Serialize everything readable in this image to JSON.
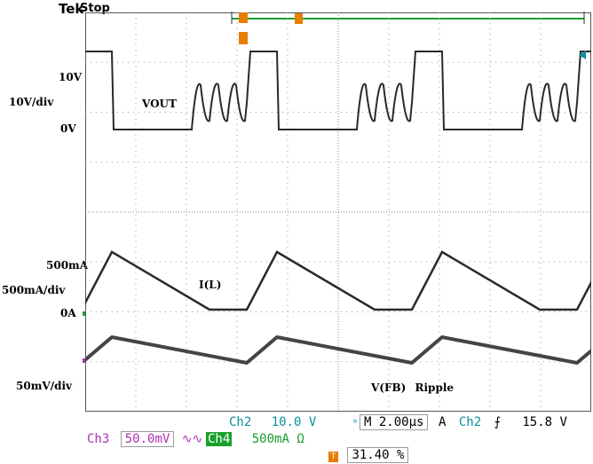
{
  "header": {
    "brand": "Tek",
    "status": "Stop"
  },
  "trigger_marker": {
    "icon": "trigger-position-arrow",
    "color": "#e67e00",
    "label": "T"
  },
  "labels": {
    "vout_high": "10V",
    "vout_scale": "10V/div",
    "vout_zero": "0V",
    "vout_name": "VOUT",
    "il_high": "500mA",
    "il_scale": "500mA/div",
    "il_zero": "0A",
    "il_name": "I(L)",
    "vfb_scale": "50mV/div",
    "vfb_name": "V(FB)",
    "vfb_suffix": "Ripple"
  },
  "readouts": {
    "ch2_name": "Ch2",
    "ch2_scale": "10.0 V",
    "timebase": "M 2.00µs",
    "trig_mode": "A",
    "trig_ch": "Ch2",
    "trig_slope_icon": "rising-edge-icon",
    "trig_level": "15.8 V",
    "ch3_name": "Ch3",
    "ch3_scale": "50.0mV",
    "ch4_name": "Ch4",
    "ch4_scale": "500mA",
    "ch4_unit": "Ω",
    "trig_pos": "31.40 %"
  },
  "colors": {
    "ch2": "#0a8fa3",
    "ch3": "#b02fb0",
    "ch4": "#19a02a",
    "orange": "#e67e00",
    "trace": "#2a2a2a"
  }
}
